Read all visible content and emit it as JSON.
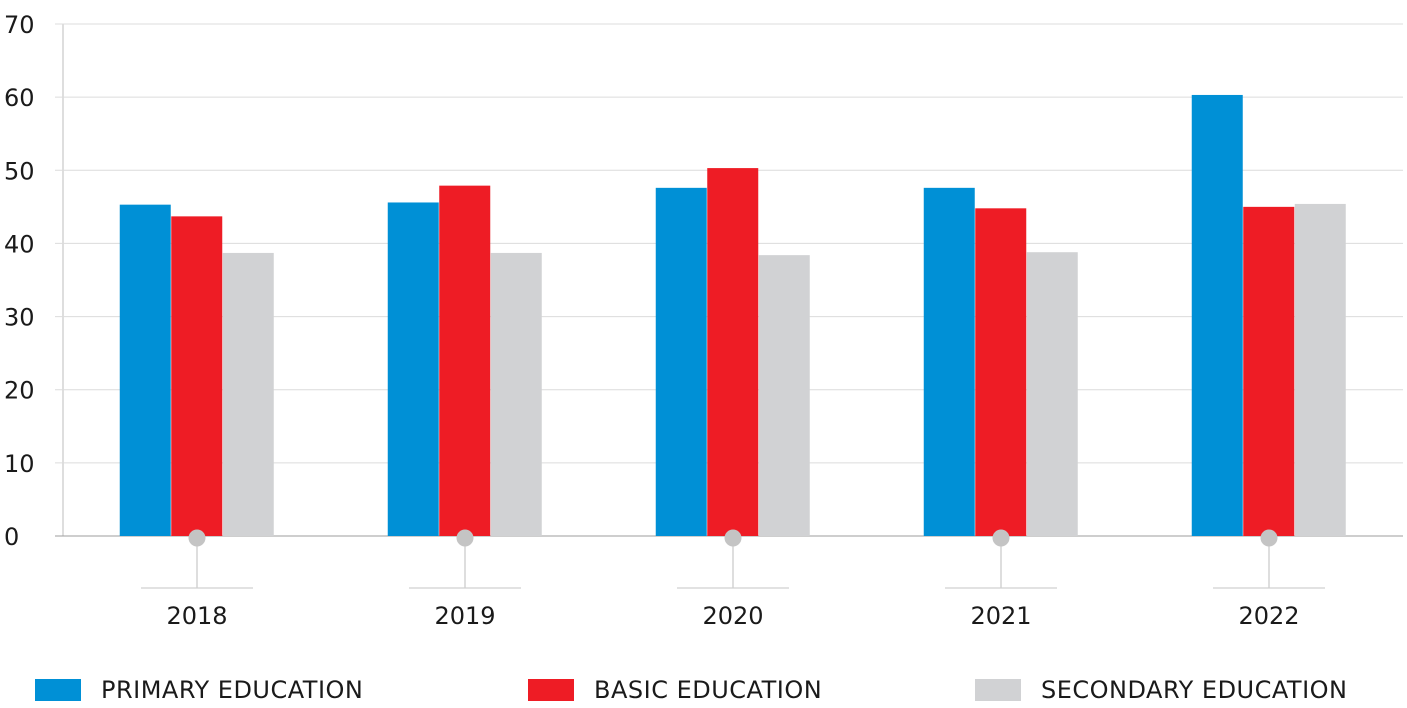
{
  "chart_data": {
    "type": "bar",
    "title": "",
    "xlabel": "",
    "ylabel": "",
    "categories": [
      "2018",
      "2019",
      "2020",
      "2021",
      "2022"
    ],
    "series": [
      {
        "name": "PRIMARY EDUCATION",
        "color": "#0090d6",
        "values": [
          45.3,
          45.6,
          47.6,
          47.6,
          60.3
        ]
      },
      {
        "name": "BASIC EDUCATION",
        "color": "#ee1c25",
        "values": [
          43.7,
          47.9,
          50.3,
          44.8,
          45.0
        ]
      },
      {
        "name": "SECONDARY EDUCATION",
        "color": "#d1d2d4",
        "values": [
          38.7,
          38.7,
          38.4,
          38.8,
          45.4
        ]
      }
    ],
    "ylim": [
      0,
      70
    ],
    "yticks": [
      0,
      10,
      20,
      30,
      40,
      50,
      60,
      70
    ],
    "grid": true,
    "legend_position": "bottom"
  }
}
